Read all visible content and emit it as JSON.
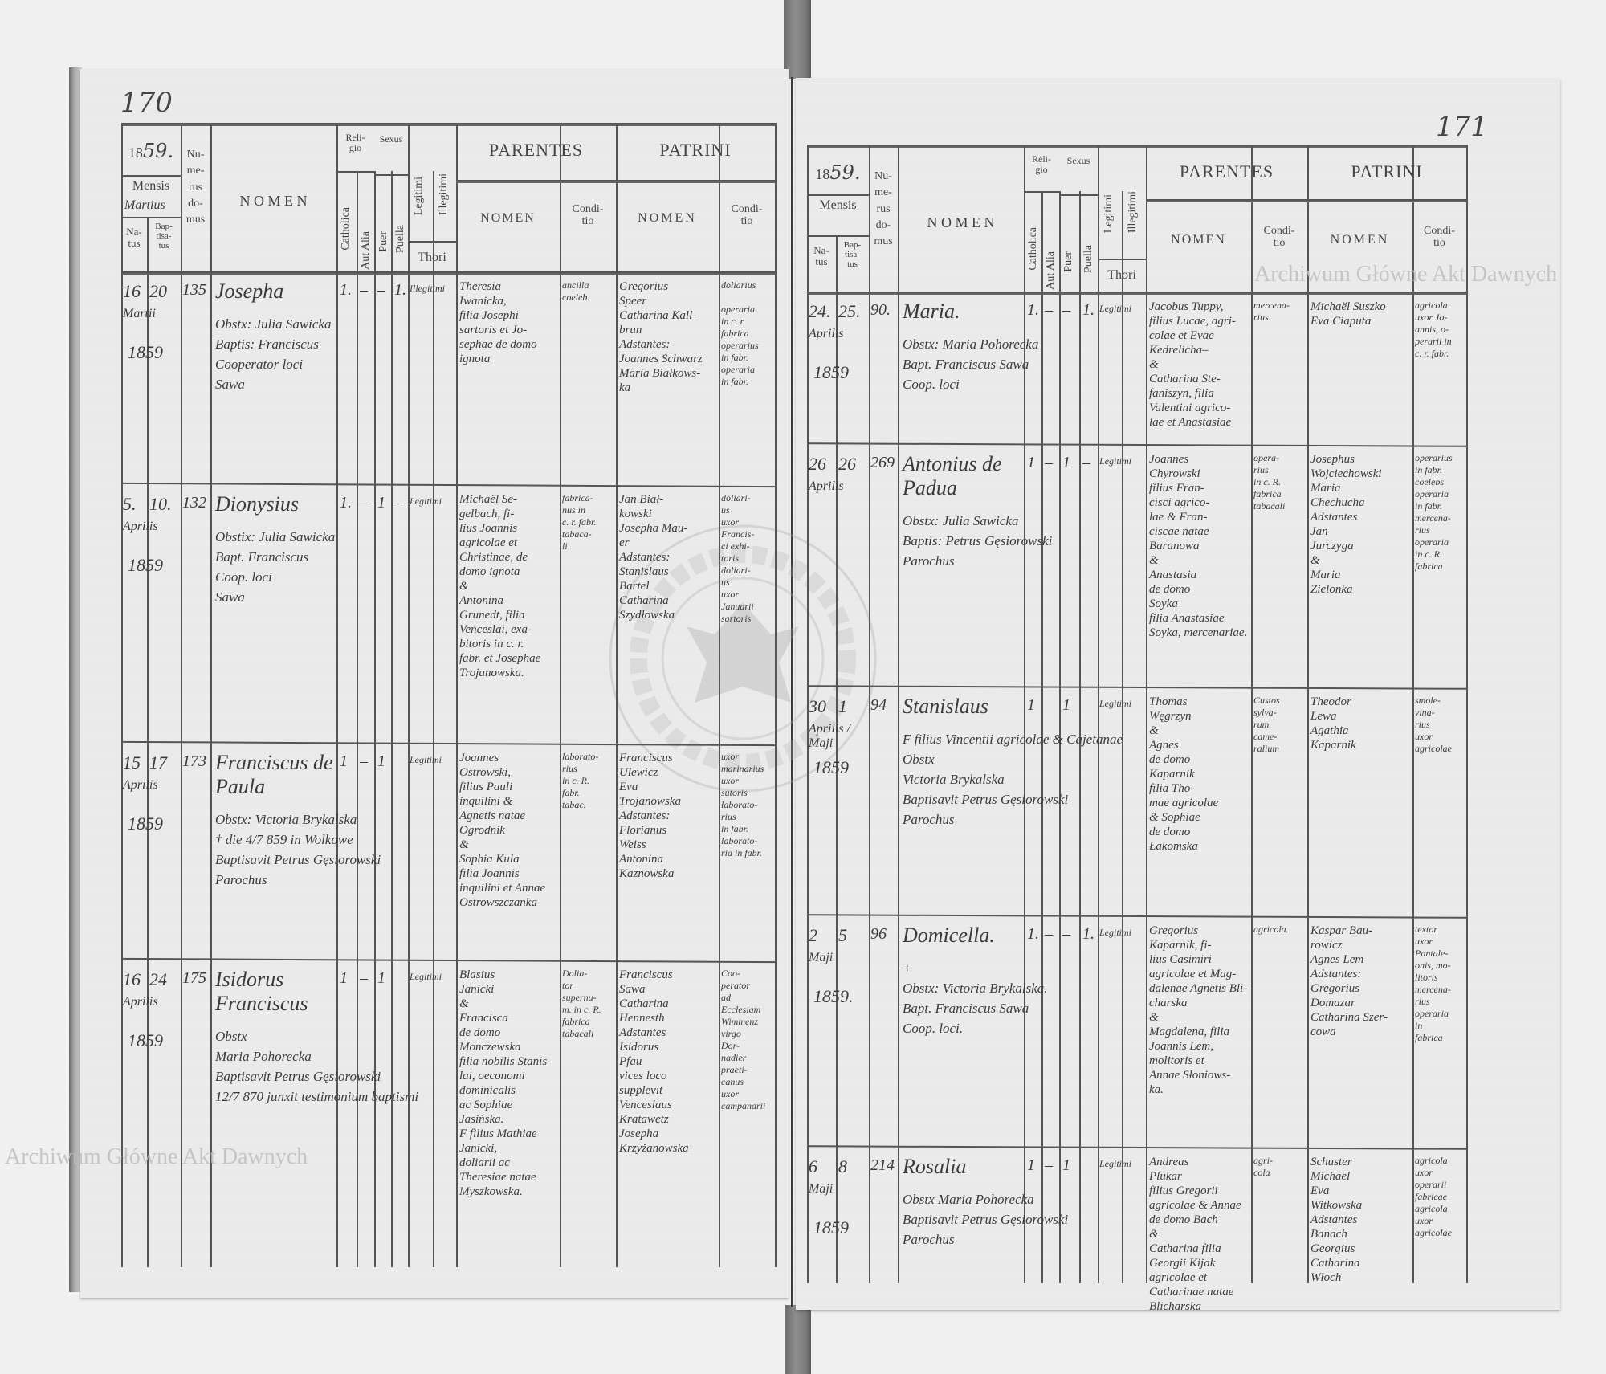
{
  "watermark": {
    "text": "Archiwum Główne Akt Dawnych",
    "seal_text": "ARCHIWUM GŁÓWNE AKT DAWNYCH"
  },
  "header": {
    "year_prefix": "18",
    "year_suffix": "59.",
    "mensis": "Mensis",
    "natus": "Na-\ntus",
    "baptisatus": "Bap-\ntisa-\ntus",
    "numerus_domus": "Nu-\nme-\nrus\ndo-\nmus",
    "nomen": "N O M E N",
    "religio": "Reli-\ngio",
    "catholica": "Catholica",
    "aut_alia": "Aut Alia",
    "sexus": "Sexus",
    "puer": "Puer",
    "puella": "Puella",
    "legitimi": "Legitimi",
    "illegitimi": "Illegitimi",
    "thori": "Thori",
    "parentes": "PARENTES",
    "patrini": "PATRINI",
    "sub_nomen": "NOMEN",
    "conditio": "Condi-\ntio"
  },
  "pages": [
    {
      "page_number": "170",
      "mensis_value": "Martius",
      "entries": [
        {
          "natus": "16",
          "baptisatus": "20",
          "month": "Martii",
          "year": "1859",
          "house": "135",
          "name": "Josepha",
          "notes": [
            "Obstx: Julia Sawicka",
            "Baptis: Franciscus",
            "Cooperator loci",
            "Sawa"
          ],
          "catholica": "1.",
          "aut_alia": "–",
          "puer": "–",
          "puella": "1.",
          "thori": "Illegitimi",
          "parents": {
            "nomen": [
              "Theresia",
              "Iwanicka,",
              "filia Josephi",
              "sartoris et Jo-",
              "sephae de domo",
              "ignota"
            ],
            "conditio": [
              "ancilla",
              "coeleb."
            ]
          },
          "patrini": {
            "nomen": [
              "Gregorius",
              "Speer",
              "Catharina Kall-",
              "brun",
              "Adstantes:",
              "Joannes Schwarz",
              "Maria Białkows-",
              "ka"
            ],
            "conditio": [
              "doliarius",
              "",
              "operaria",
              "in c. r.",
              "fabrica",
              "operarius",
              "in fabr.",
              "operaria",
              "in fabr."
            ]
          }
        },
        {
          "natus": "5.",
          "baptisatus": "10.",
          "month": "Aprilis",
          "year": "1859",
          "house": "132",
          "name": "Dionysius",
          "notes": [
            "Obstix: Julia Sawicka",
            "Bapt. Franciscus",
            "Coop. loci",
            "Sawa"
          ],
          "catholica": "1.",
          "aut_alia": "–",
          "puer": "1",
          "puella": "–",
          "thori": "Legitimi",
          "parents": {
            "nomen": [
              "Michaël Se-",
              "gelbach, fi-",
              "lius Joannis",
              "agricolae et",
              "Christinae, de",
              "domo ignota",
              "&",
              "Antonina",
              "Grunedt, filia",
              "Venceslai, exa-",
              "bitoris in c. r.",
              "fabr. et Josephae",
              "Trojanowska."
            ],
            "conditio": [
              "fabrica-",
              "nus in",
              "c. r. fabr.",
              "tabaca-",
              "li"
            ]
          },
          "patrini": {
            "nomen": [
              "Jan Biał-",
              "kowski",
              "Josepha Mau-",
              "er",
              "Adstantes:",
              "Stanislaus",
              "Bartel",
              "Catharina",
              "Szydłowska"
            ],
            "conditio": [
              "doliari-",
              "us",
              "uxor",
              "Francis-",
              "ci exhi-",
              "toris",
              "doliari-",
              "us",
              "uxor",
              "Januarii",
              "sartoris"
            ]
          }
        },
        {
          "natus": "15",
          "baptisatus": "17",
          "month": "Aprilis",
          "year": "1859",
          "house": "173",
          "name": "Franciscus de Paula",
          "notes": [
            "Obstx: Victoria Brykalska",
            "† die 4/7 859 in Wolkowe",
            "Baptisavit Petrus Gęsiorowski",
            "Parochus"
          ],
          "catholica": "1",
          "aut_alia": "–",
          "puer": "1",
          "puella": "",
          "thori": "Legitimi",
          "parents": {
            "nomen": [
              "Joannes",
              "Ostrowski,",
              "filius Pauli",
              "inquilini &",
              "Agnetis natae",
              "Ogrodnik",
              "&",
              "Sophia Kula",
              "filia Joannis",
              "inquilini et Annae",
              "Ostrowszczanka"
            ],
            "conditio": [
              "laborato-",
              "rius",
              "in c. R.",
              "fabr.",
              "tabac."
            ]
          },
          "patrini": {
            "nomen": [
              "Franciscus",
              "Ulewicz",
              "Eva",
              "Trojanowska",
              "Adstantes:",
              "Florianus",
              "Weiss",
              "Antonina",
              "Kaznowska"
            ],
            "conditio": [
              "uxor",
              "marinarius",
              "uxor",
              "sutoris",
              "laborato-",
              "rius",
              "in fabr.",
              "laborato-",
              "ria in fabr."
            ]
          }
        },
        {
          "natus": "16",
          "baptisatus": "24",
          "month": "Aprilis",
          "year": "1859",
          "house": "175",
          "name": "Isidorus Franciscus",
          "notes": [
            "Obstx",
            "Maria Pohorecka",
            "Baptisavit Petrus Gęsiorowski",
            "12/7 870 junxit testimonium baptismi"
          ],
          "catholica": "1",
          "aut_alia": "–",
          "puer": "1",
          "puella": "",
          "thori": "Legitimi",
          "parents": {
            "nomen": [
              "Blasius",
              "Janicki",
              "&",
              "Francisca",
              "de domo",
              "Monczewska",
              "filia nobilis Stanis-",
              "lai, oeconomi dominicalis",
              "ac Sophiae Jasińska.",
              "F filius Mathiae Janicki,",
              "doliarii ac Theresiae natae",
              "Myszkowska."
            ],
            "conditio": [
              "Dolia-",
              "tor",
              "supernu-",
              "m. in c. R.",
              "fabrica",
              "tabacali"
            ]
          },
          "patrini": {
            "nomen": [
              "Franciscus",
              "Sawa",
              "Catharina",
              "Hennesth",
              "Adstantes",
              "Isidorus",
              "Pfau",
              "vices loco",
              "supplevit",
              "Venceslaus",
              "Kratawetz",
              "Josepha",
              "Krzyżanowska"
            ],
            "conditio": [
              "Coo-",
              "perator",
              "ad Ecclesiam",
              "Wimmenz",
              "virgo",
              "Dor-",
              "nadier",
              "praeti-",
              "canus",
              "uxor",
              "campanarii"
            ]
          }
        }
      ]
    },
    {
      "page_number": "171",
      "mensis_value": "",
      "entries": [
        {
          "natus": "24.",
          "baptisatus": "25.",
          "month": "Aprilis",
          "year": "1859",
          "house": "90.",
          "name": "Maria.",
          "notes": [
            "Obstx: Maria Pohorecka",
            "Bapt. Franciscus Sawa",
            "Coop. loci"
          ],
          "catholica": "1.",
          "aut_alia": "–",
          "puer": "–",
          "puella": "1.",
          "thori": "Legitimi",
          "parents": {
            "nomen": [
              "Jacobus Tuppy,",
              "filius Lucae, agri-",
              "colae et Evae",
              "Kedrelicha–",
              "&",
              "Catharina Ste-",
              "faniszyn, filia",
              "Valentini agrico-",
              "lae et Anastasiae"
            ],
            "conditio": [
              "mercena-",
              "rius."
            ]
          },
          "patrini": {
            "nomen": [
              "Michaël Suszko",
              "Eva Ciaputa"
            ],
            "conditio": [
              "agricola",
              "uxor Jo-",
              "annis, o-",
              "perarii in",
              "c. r. fabr."
            ]
          }
        },
        {
          "natus": "26",
          "baptisatus": "26",
          "month": "Aprilis",
          "year": "",
          "house": "269",
          "name": "Antonius de Padua",
          "notes": [
            "Obstx: Julia Sawicka",
            "Baptis: Petrus Gęsiorowski",
            "Parochus"
          ],
          "catholica": "1",
          "aut_alia": "–",
          "puer": "1",
          "puella": "–",
          "thori": "Legitimi",
          "parents": {
            "nomen": [
              "Joannes",
              "Chyrowski",
              "filius Fran-",
              "cisci agrico-",
              "lae & Fran-",
              "ciscae natae",
              "Baranowa",
              "&",
              "Anastasia",
              "de domo",
              "Soyka",
              "filia Anastasiae",
              "Soyka, mercenariae."
            ],
            "conditio": [
              "opera-",
              "rius",
              "in c. R.",
              "fabrica",
              "tabacali"
            ]
          },
          "patrini": {
            "nomen": [
              "Josephus",
              "Wojciechowski",
              "Maria",
              "Chechucha",
              "Adstantes",
              "Jan",
              "Jurczyga",
              "&",
              "Maria",
              "Zielonka"
            ],
            "conditio": [
              "operarius",
              "in fabr.",
              "coelebs",
              "operaria",
              "in fabr.",
              "mercena-",
              "rius",
              "operaria",
              "in c. R.",
              "fabrica"
            ]
          }
        },
        {
          "natus": "30",
          "baptisatus": "1",
          "month": "Aprilis / Maji",
          "year": "1859",
          "house": "94",
          "name": "Stanislaus",
          "notes": [
            "F filius Vincentii agricolae & Cajetanae",
            "Obstx",
            "Victoria Brykalska",
            "Baptisavit Petrus Gęsiorowski",
            "Parochus"
          ],
          "catholica": "1",
          "aut_alia": "",
          "puer": "1",
          "puella": "",
          "thori": "Legitimi",
          "parents": {
            "nomen": [
              "Thomas",
              "Węgrzyn",
              "&",
              "Agnes",
              "de domo",
              "Kaparnik",
              "filia Tho-",
              "mae agricolae",
              "& Sophiae",
              "de domo",
              "Łakomska"
            ],
            "conditio": [
              "Custos",
              "sylva-",
              "rum",
              "came-",
              "ralium"
            ]
          },
          "patrini": {
            "nomen": [
              "Theodor",
              "Lewa",
              "Agathia",
              "Kaparnik"
            ],
            "conditio": [
              "smole-",
              "vina-",
              "rius",
              "uxor",
              "agricolae"
            ]
          }
        },
        {
          "natus": "2",
          "baptisatus": "5",
          "month": "Maji",
          "year": "1859.",
          "house": "96",
          "name": "Domicella.",
          "notes": [
            "+",
            "Obstx: Victoria Brykalska.",
            "Bapt. Franciscus Sawa",
            "Coop. loci."
          ],
          "catholica": "1.",
          "aut_alia": "–",
          "puer": "–",
          "puella": "1.",
          "thori": "Legitimi",
          "parents": {
            "nomen": [
              "Gregorius",
              "Kaparnik, fi-",
              "lius Casimiri",
              "agricolae et Mag-",
              "dalenae Agnetis Bli-",
              "charska",
              "&",
              "Magdalena, filia",
              "Joannis Lem,",
              "molitoris et",
              "Annae Słoniows-",
              "ka."
            ],
            "conditio": [
              "agricola."
            ]
          },
          "patrini": {
            "nomen": [
              "Kaspar Bau-",
              "rowicz",
              "Agnes Lem",
              "Adstantes:",
              "Gregorius",
              "Domazar",
              "Catharina Szer-",
              "cowa"
            ],
            "conditio": [
              "textor",
              "uxor",
              "Pantale-",
              "onis, mo-",
              "litoris",
              "mercena-",
              "rius",
              "operaria",
              "in",
              "fabrica"
            ]
          }
        },
        {
          "natus": "6",
          "baptisatus": "8",
          "month": "Maji",
          "year": "1859",
          "house": "214",
          "name": "Rosalia",
          "notes": [
            "Obstx Maria Pohorecka",
            "Baptisavit Petrus Gęsiorowski",
            "Parochus"
          ],
          "catholica": "1",
          "aut_alia": "–",
          "puer": "1",
          "puella": "",
          "thori": "Legitimi",
          "parents": {
            "nomen": [
              "Andreas",
              "Plukar",
              "filius Gregorii",
              "agricolae & Annae",
              "de domo Bach",
              "&",
              "Catharina filia",
              "Georgii Kijak",
              "agricolae et",
              "Catharinae natae Blicharska"
            ],
            "conditio": [
              "agri-",
              "cola"
            ]
          },
          "patrini": {
            "nomen": [
              "Schuster",
              "Michael",
              "Eva",
              "Witkowska",
              "Adstantes",
              "Banach",
              "Georgius",
              "Catharina",
              "Włoch"
            ],
            "conditio": [
              "agricola",
              "uxor",
              "operarii",
              "fabricae",
              "agricola",
              "uxor",
              "agricolae"
            ]
          }
        }
      ]
    }
  ]
}
